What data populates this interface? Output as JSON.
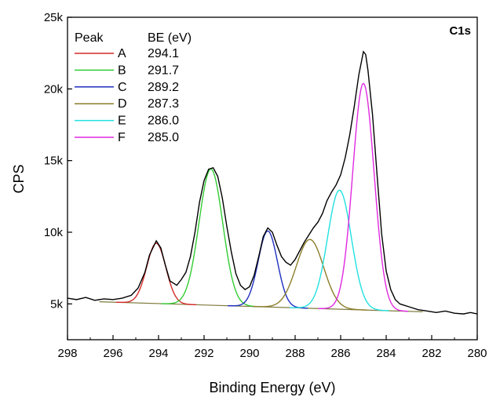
{
  "chart_data": {
    "type": "line",
    "title": "C1s",
    "xlabel": "Binding Energy (eV)",
    "ylabel": "CPS",
    "xlim": [
      298,
      280
    ],
    "ylim": [
      2500,
      25000
    ],
    "x_reversed": true,
    "grid": false,
    "x_ticks": [
      298,
      296,
      294,
      292,
      290,
      288,
      286,
      284,
      282,
      280
    ],
    "x_tick_labels": [
      "298",
      "296",
      "294",
      "292",
      "290",
      "288",
      "286",
      "284",
      "282",
      "280"
    ],
    "y_ticks": [
      5000,
      10000,
      15000,
      20000,
      25000
    ],
    "y_tick_labels": [
      "5k",
      "10k",
      "15k",
      "20k",
      "25k"
    ],
    "legend": {
      "placement": "top-left",
      "header_peak": "Peak",
      "header_be": "BE (eV)",
      "entries": [
        {
          "name": "A",
          "be": "294.1",
          "color": "#d42a2a"
        },
        {
          "name": "B",
          "be": "291.7",
          "color": "#33cc33"
        },
        {
          "name": "C",
          "be": "289.2",
          "color": "#1f2fbf"
        },
        {
          "name": "D",
          "be": "287.3",
          "color": "#8c7d2a"
        },
        {
          "name": "E",
          "be": "286.0",
          "color": "#22e0e0"
        },
        {
          "name": "F",
          "be": "285.0",
          "color": "#e02ae0"
        }
      ]
    },
    "background": {
      "color": "#7d7a3a",
      "x": [
        296.6,
        282.4
      ],
      "y": [
        5150,
        4450
      ]
    },
    "peaks": [
      {
        "name": "A",
        "center": 294.1,
        "height": 4200,
        "sigma": 0.42,
        "color": "#d42a2a"
      },
      {
        "name": "B",
        "center": 291.7,
        "height": 9500,
        "sigma": 0.52,
        "color": "#33cc33"
      },
      {
        "name": "C",
        "center": 289.2,
        "height": 5300,
        "sigma": 0.42,
        "color": "#1f2fbf"
      },
      {
        "name": "D",
        "center": 287.35,
        "height": 4800,
        "sigma": 0.6,
        "color": "#8c7d2a"
      },
      {
        "name": "E",
        "center": 286.05,
        "height": 8300,
        "sigma": 0.52,
        "color": "#22e0e0"
      },
      {
        "name": "F",
        "center": 285.0,
        "height": 15800,
        "sigma": 0.47,
        "color": "#e02ae0"
      }
    ],
    "raw_spectrum": {
      "color": "#000000",
      "points": [
        [
          298.0,
          5400
        ],
        [
          297.6,
          5300
        ],
        [
          297.2,
          5450
        ],
        [
          296.8,
          5250
        ],
        [
          296.4,
          5350
        ],
        [
          296.0,
          5300
        ],
        [
          295.6,
          5400
        ],
        [
          295.2,
          5600
        ],
        [
          294.9,
          6100
        ],
        [
          294.6,
          7200
        ],
        [
          294.4,
          8400
        ],
        [
          294.1,
          9400
        ],
        [
          293.9,
          8900
        ],
        [
          293.7,
          7700
        ],
        [
          293.5,
          6600
        ],
        [
          293.2,
          6300
        ],
        [
          293.0,
          6700
        ],
        [
          292.8,
          7200
        ],
        [
          292.6,
          8300
        ],
        [
          292.4,
          10000
        ],
        [
          292.2,
          12100
        ],
        [
          292.0,
          13600
        ],
        [
          291.8,
          14400
        ],
        [
          291.6,
          14500
        ],
        [
          291.4,
          13900
        ],
        [
          291.2,
          12400
        ],
        [
          291.0,
          10400
        ],
        [
          290.8,
          8600
        ],
        [
          290.6,
          7100
        ],
        [
          290.4,
          6300
        ],
        [
          290.2,
          6000
        ],
        [
          290.0,
          6200
        ],
        [
          289.8,
          7000
        ],
        [
          289.6,
          8300
        ],
        [
          289.4,
          9700
        ],
        [
          289.2,
          10300
        ],
        [
          289.0,
          10000
        ],
        [
          288.8,
          9100
        ],
        [
          288.6,
          8300
        ],
        [
          288.4,
          7900
        ],
        [
          288.2,
          7700
        ],
        [
          288.0,
          8100
        ],
        [
          287.8,
          8700
        ],
        [
          287.6,
          9300
        ],
        [
          287.4,
          9800
        ],
        [
          287.2,
          10300
        ],
        [
          287.0,
          10700
        ],
        [
          286.8,
          11300
        ],
        [
          286.6,
          12200
        ],
        [
          286.4,
          12800
        ],
        [
          286.2,
          13300
        ],
        [
          286.0,
          14000
        ],
        [
          285.8,
          15200
        ],
        [
          285.6,
          16800
        ],
        [
          285.4,
          18800
        ],
        [
          285.2,
          21000
        ],
        [
          285.0,
          22600
        ],
        [
          284.9,
          22400
        ],
        [
          284.8,
          21300
        ],
        [
          284.6,
          18200
        ],
        [
          284.4,
          14000
        ],
        [
          284.2,
          9900
        ],
        [
          284.0,
          7300
        ],
        [
          283.8,
          6000
        ],
        [
          283.6,
          5300
        ],
        [
          283.4,
          5000
        ],
        [
          283.0,
          4800
        ],
        [
          282.6,
          4600
        ],
        [
          282.2,
          4500
        ],
        [
          281.8,
          4400
        ],
        [
          281.4,
          4500
        ],
        [
          281.0,
          4350
        ],
        [
          280.6,
          4300
        ],
        [
          280.3,
          4400
        ],
        [
          280.0,
          4300
        ]
      ]
    }
  }
}
